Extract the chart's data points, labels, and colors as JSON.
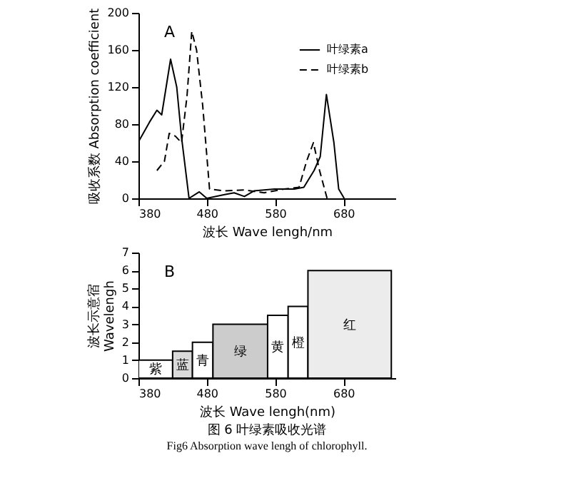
{
  "chart_data": [
    {
      "type": "line",
      "xlabel": "波长 Wave lengh/nm",
      "ylabel": "吸收系数 Absorption coefficient",
      "xlim": [
        380,
        756
      ],
      "xticks": [
        380,
        480,
        580,
        680
      ],
      "ylim": [
        0,
        200
      ],
      "yticks": [
        0,
        40,
        80,
        120,
        160,
        200
      ],
      "grid": false,
      "legend": "top right",
      "annotations": [
        "A"
      ],
      "series": [
        {
          "name": "叶绿素a",
          "color": "#000000",
          "line_style": "solid",
          "x": [
            380,
            396,
            407,
            414,
            427,
            436,
            443,
            454,
            469,
            480,
            506,
            520,
            535,
            549,
            579,
            608,
            622,
            637,
            646,
            655,
            666,
            673,
            681
          ],
          "values": [
            61,
            82,
            95,
            90,
            150,
            120,
            66,
            0,
            7,
            0,
            4,
            6,
            2,
            8,
            10,
            10,
            12,
            30,
            45,
            112,
            60,
            10,
            0
          ]
        },
        {
          "name": "叶绿素b",
          "color": "#000000",
          "line_style": "dashed",
          "x": [
            407,
            418,
            425,
            434,
            443,
            451,
            458,
            465,
            474,
            484,
            506,
            535,
            564,
            593,
            615,
            626,
            636,
            645,
            656
          ],
          "values": [
            30,
            40,
            70,
            67,
            60,
            110,
            180,
            160,
            100,
            10,
            8,
            9,
            6,
            10,
            12,
            40,
            60,
            30,
            0
          ]
        }
      ]
    },
    {
      "type": "histogram",
      "xlabel": "波长 Wave lengh(nm)",
      "ylabel": "波长示意宿 Wavelengh",
      "xlim": [
        380,
        756
      ],
      "xticks": [
        380,
        480,
        580,
        680
      ],
      "ylim": [
        0,
        7
      ],
      "yticks": [
        0,
        1,
        2,
        3,
        4,
        5,
        6,
        7
      ],
      "grid": false,
      "bins": [
        380,
        430,
        459,
        489,
        569,
        599,
        628,
        750
      ],
      "values": [
        1,
        1.5,
        2,
        3,
        3.5,
        4,
        6
      ],
      "colors": [
        "#ffffff",
        "#d9d9d9",
        "#ffffff",
        "#cccccc",
        "#ffffff",
        "#ffffff",
        "#ececec"
      ],
      "value_labels": [
        "紫",
        "蓝",
        "青",
        "绿",
        "黄",
        "橙",
        "红"
      ],
      "annotations": [
        "B",
        "图 6   叶绿素吸收光谱",
        "Fig6 Absorption wave lengh of chlorophyll."
      ]
    }
  ]
}
